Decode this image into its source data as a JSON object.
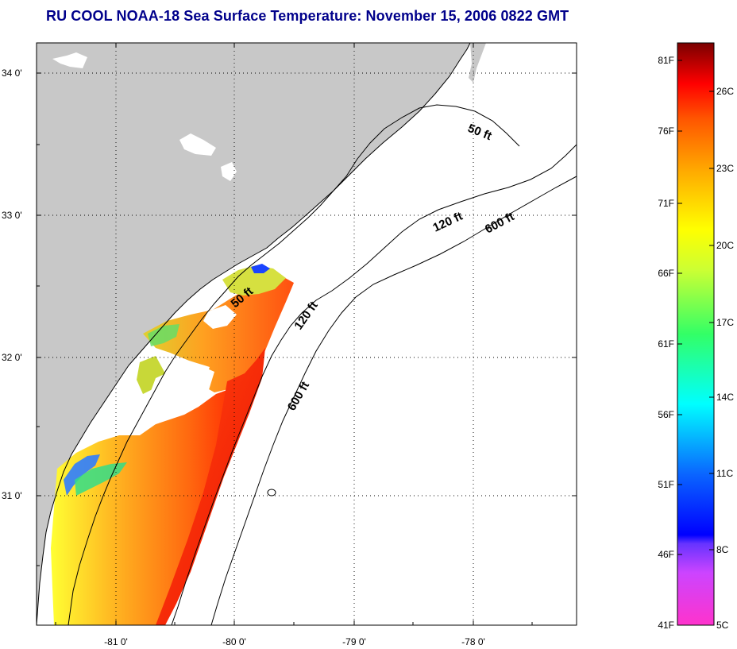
{
  "title": "RU COOL  NOAA-18  Sea Surface Temperature:  November 15, 2006 0822 GMT",
  "map": {
    "lat_ticks": [
      "34 0'",
      "33 0'",
      "32 0'",
      "31 0'"
    ],
    "lon_ticks": [
      "-81 0'",
      "-80 0'",
      "-79 0'",
      "-78 0'"
    ],
    "isobath_labels": {
      "fifty_north": "50 ft",
      "fifty_south": "50 ft",
      "onetwenty_north": "120 ft",
      "onetwenty_south": "120 ft",
      "sixhundred_north": "600 ft",
      "sixhundred_south": "600 ft"
    },
    "colors": {
      "land": "#c8c8c8",
      "cloud": "#ffffff",
      "ocean_frame": "#ffffff",
      "title": "#00008b"
    }
  },
  "colorbar": {
    "fahrenheit_labels": [
      "81F",
      "76F",
      "71F",
      "66F",
      "61F",
      "56F",
      "51F",
      "46F",
      "41F"
    ],
    "celsius_labels": [
      "26C",
      "23C",
      "20C",
      "17C",
      "14C",
      "11C",
      "8C",
      "5C"
    ],
    "range_c": [
      5,
      27.2
    ],
    "colormap": [
      "#ff33cc",
      "#9933ff",
      "#0000ff",
      "#00bfff",
      "#00ffff",
      "#33ff33",
      "#ffff00",
      "#ff8800",
      "#ff0000",
      "#880000"
    ]
  }
}
